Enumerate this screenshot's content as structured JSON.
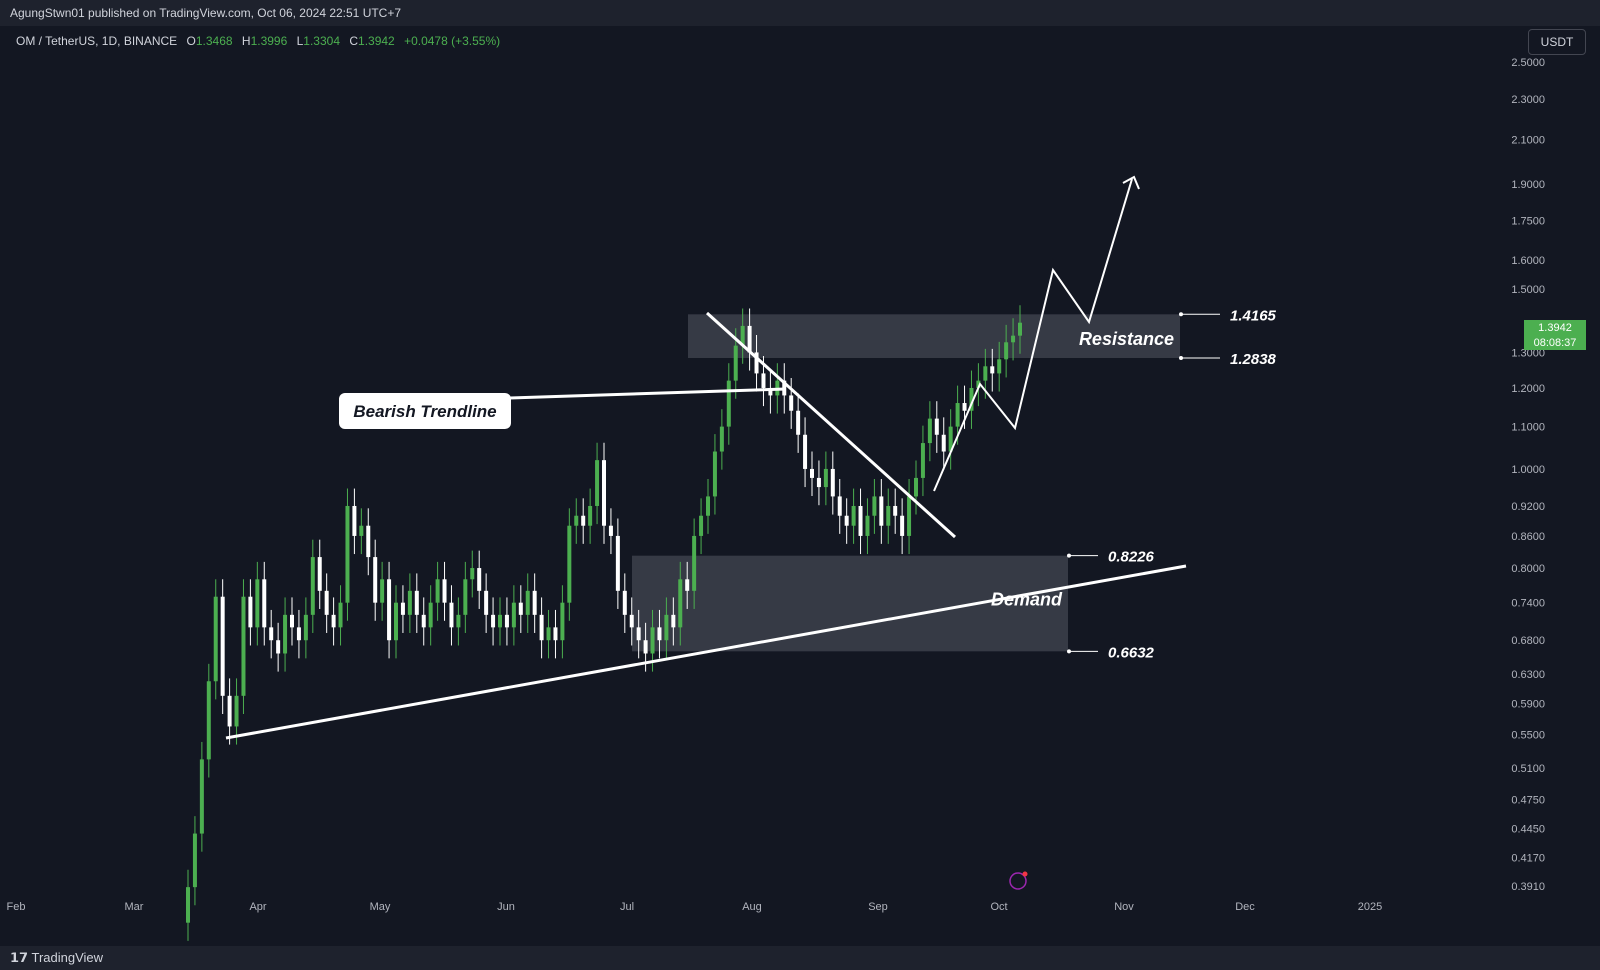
{
  "header": {
    "publisher": "AgungStwn01 published on TradingView.com, Oct 06, 2024 22:51 UTC+7"
  },
  "legend": {
    "symbol": "OM / TetherUS, 1D, BINANCE",
    "open_label": "O",
    "open": "1.3468",
    "high_label": "H",
    "high": "1.3996",
    "low_label": "L",
    "low": "1.3304",
    "close_label": "C",
    "close": "1.3942",
    "change": "+0.0478 (+3.55%)"
  },
  "currency": "USDT",
  "last_price": {
    "value": "1.3942",
    "countdown": "08:08:37"
  },
  "footer": {
    "brand": "TradingView"
  },
  "chart_data": {
    "type": "candlestick",
    "scale": "log",
    "y_ticks": [
      2.5,
      2.3,
      2.1,
      1.9,
      1.75,
      1.6,
      1.5,
      1.3,
      1.2,
      1.1,
      1.0,
      0.92,
      0.86,
      0.8,
      0.74,
      0.68,
      0.63,
      0.59,
      0.55,
      0.51,
      0.475,
      0.445,
      0.417,
      0.391
    ],
    "y_tick_labels": [
      "2.5000",
      "2.3000",
      "2.1000",
      "1.9000",
      "1.7500",
      "1.6000",
      "1.5000",
      "1.3000",
      "1.2000",
      "1.1000",
      "1.0000",
      "0.9200",
      "0.8600",
      "0.8000",
      "0.7400",
      "0.6800",
      "0.6300",
      "0.5900",
      "0.5500",
      "0.5100",
      "0.4750",
      "0.4450",
      "0.4170",
      "0.3910"
    ],
    "x_labels": [
      "Feb",
      "Mar",
      "Apr",
      "May",
      "Jun",
      "Jul",
      "Aug",
      "Sep",
      "Oct",
      "Nov",
      "Dec",
      "2025"
    ],
    "ylim": [
      0.375,
      2.6
    ],
    "candles_daily_closes": [
      0.39,
      0.44,
      0.52,
      0.62,
      0.75,
      0.6,
      0.56,
      0.6,
      0.75,
      0.7,
      0.78,
      0.7,
      0.68,
      0.66,
      0.72,
      0.7,
      0.68,
      0.72,
      0.82,
      0.76,
      0.72,
      0.7,
      0.74,
      0.92,
      0.86,
      0.88,
      0.82,
      0.74,
      0.78,
      0.68,
      0.74,
      0.72,
      0.76,
      0.72,
      0.7,
      0.74,
      0.78,
      0.74,
      0.7,
      0.72,
      0.78,
      0.8,
      0.76,
      0.72,
      0.7,
      0.72,
      0.7,
      0.74,
      0.72,
      0.76,
      0.72,
      0.68,
      0.7,
      0.68,
      0.74,
      0.88,
      0.9,
      0.88,
      0.92,
      1.02,
      0.88,
      0.86,
      0.76,
      0.72,
      0.7,
      0.68,
      0.66,
      0.7,
      0.68,
      0.72,
      0.7,
      0.78,
      0.76,
      0.86,
      0.9,
      0.94,
      1.04,
      1.1,
      1.22,
      1.32,
      1.38,
      1.3,
      1.24,
      1.2,
      1.18,
      1.22,
      1.18,
      1.14,
      1.08,
      1.0,
      0.98,
      0.96,
      1.0,
      0.94,
      0.9,
      0.88,
      0.92,
      0.86,
      0.9,
      0.94,
      0.88,
      0.92,
      0.9,
      0.86,
      0.94,
      0.98,
      1.06,
      1.12,
      1.08,
      1.04,
      1.1,
      1.16,
      1.14,
      1.2,
      1.22,
      1.26,
      1.24,
      1.28,
      1.33,
      1.35,
      1.39
    ],
    "annotations": {
      "resistance": {
        "label": "Resistance",
        "top": 1.4165,
        "bottom": 1.2838,
        "top_label": "1.4165",
        "bottom_label": "1.2838"
      },
      "demand": {
        "label": "Demand",
        "top": 0.8226,
        "bottom": 0.6632,
        "top_label": "0.8226",
        "bottom_label": "0.6632"
      },
      "callout": "Bearish Trendline"
    }
  }
}
